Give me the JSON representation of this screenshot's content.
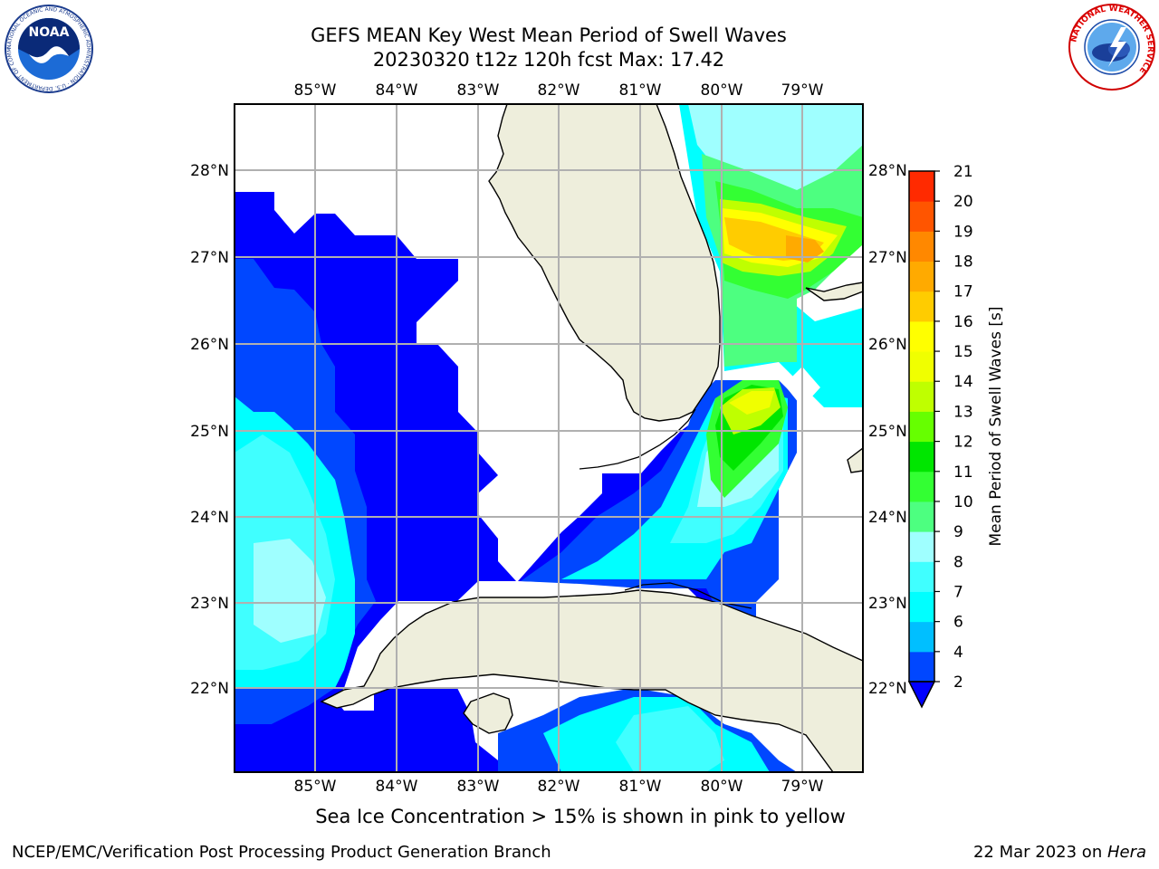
{
  "title": {
    "line1": "GEFS MEAN Key West Mean Period of Swell Waves",
    "line2": "20230320 t12z 120h fcst   Max: 17.42"
  },
  "map": {
    "lon_ticks": [
      "85°W",
      "84°W",
      "83°W",
      "82°W",
      "81°W",
      "80°W",
      "79°W"
    ],
    "lat_ticks": [
      "28°N",
      "27°N",
      "26°N",
      "25°N",
      "24°N",
      "23°N",
      "22°N"
    ],
    "lon_range": [
      -86.0,
      -78.25
    ],
    "lat_range": [
      21.05,
      28.8
    ]
  },
  "colorbar": {
    "label": "Mean Period of Swell Waves [s]",
    "ticks": [
      "2",
      "4",
      "6",
      "7",
      "8",
      "9",
      "10",
      "11",
      "12",
      "13",
      "14",
      "15",
      "16",
      "17",
      "18",
      "19",
      "20",
      "21"
    ],
    "colors": [
      "#0047ff",
      "#00bfff",
      "#00ffff",
      "#40ffff",
      "#9fffff",
      "#4dff80",
      "#33ff33",
      "#00e600",
      "#66ff00",
      "#bfff00",
      "#f0ff00",
      "#ffff00",
      "#ffcc00",
      "#ffaa00",
      "#ff8800",
      "#ff5500",
      "#ff2a00"
    ],
    "under_color": "#0000ff"
  },
  "note": "Sea Ice Concentration > 15% is shown in pink to yellow",
  "footer": {
    "left": "NCEP/EMC/Verification Post Processing Product Generation Branch",
    "date": "22 Mar 2023 on ",
    "host": "Hera"
  },
  "logos": {
    "noaa": "NOAA",
    "noaa_ring": "NATIONAL OCEANIC AND ATMOSPHERIC ADMINISTRATION · U.S. DEPARTMENT OF COMMERCE",
    "nws_ring": "NATIONAL WEATHER SERVICE"
  }
}
